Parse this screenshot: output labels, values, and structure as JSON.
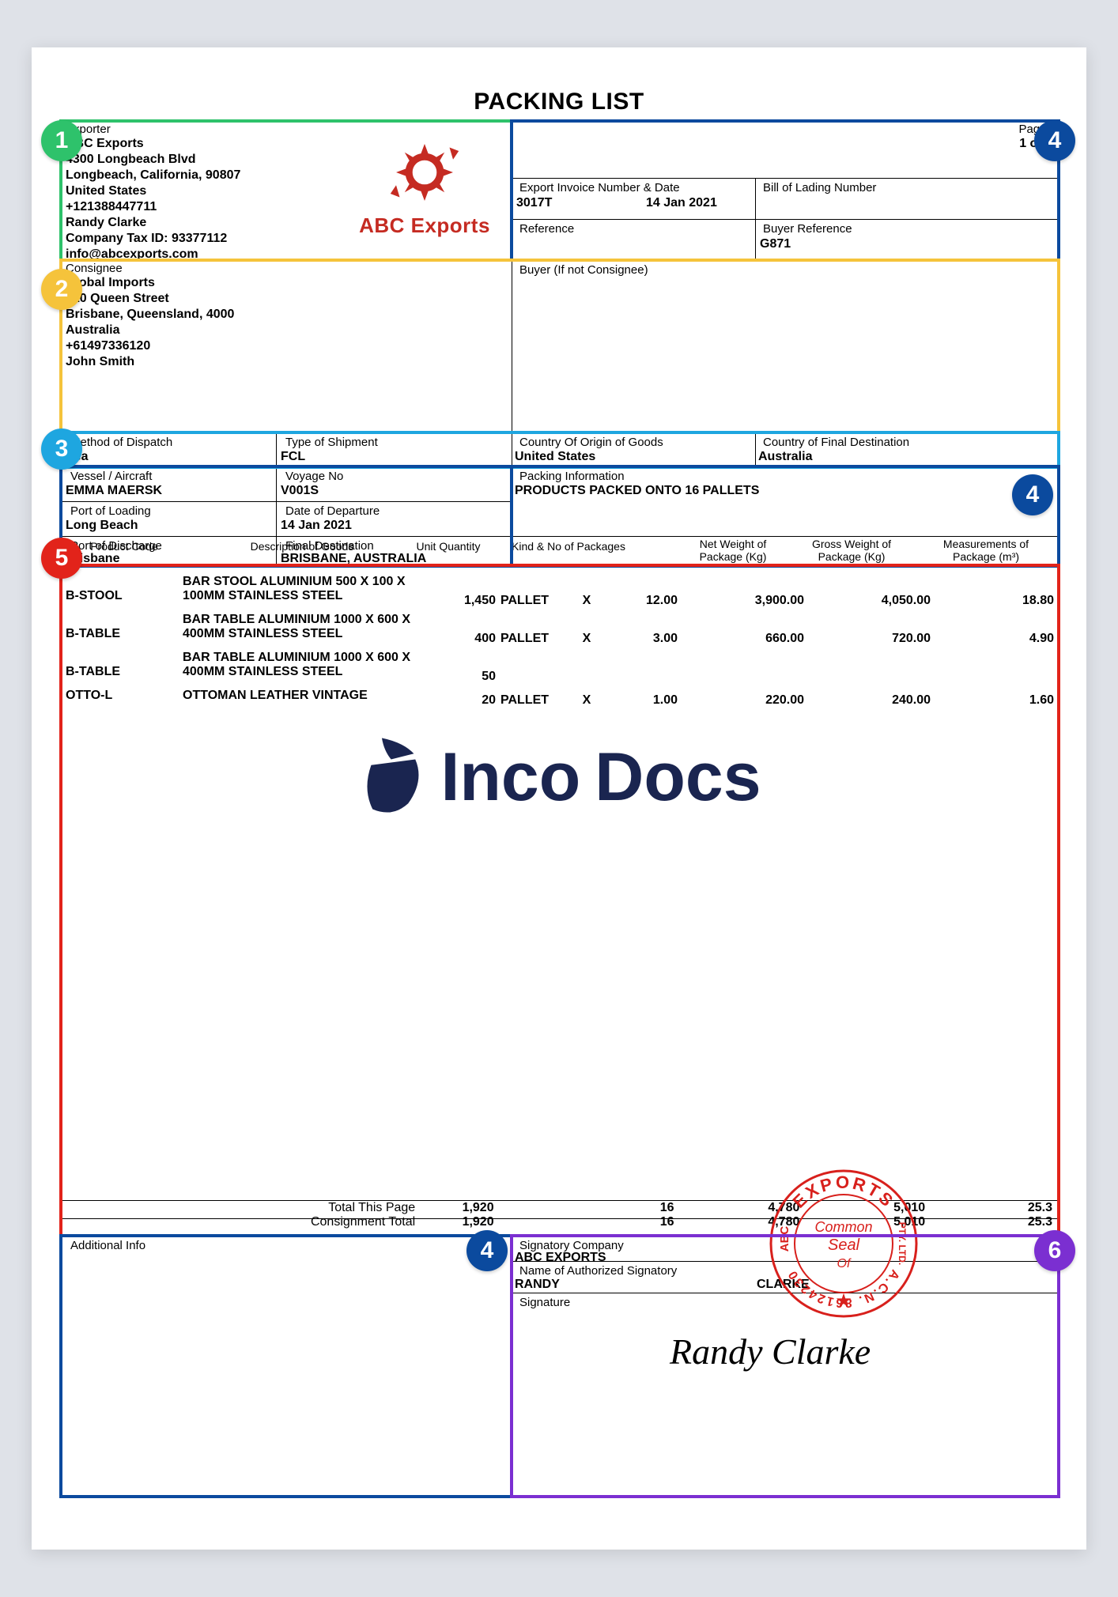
{
  "title": "PACKING LIST",
  "colors": {
    "green": "#2ec26b",
    "blue": "#0b4a9e",
    "yellow": "#f5c33b",
    "cyan": "#1ea6e0",
    "red": "#e2231a",
    "purple": "#7b2fd1",
    "page_bg": "#dfe2e8",
    "text": "#000000",
    "logo_red": "#c52b22",
    "wm_navy": "#1a2550",
    "seal_red": "#d8201c"
  },
  "badges": [
    {
      "n": "1",
      "color": "green"
    },
    {
      "n": "2",
      "color": "yellow"
    },
    {
      "n": "3",
      "color": "cyan"
    },
    {
      "n": "4",
      "color": "blue"
    },
    {
      "n": "5",
      "color": "red"
    },
    {
      "n": "6",
      "color": "purple"
    }
  ],
  "labels": {
    "exporter": "Exporter",
    "pages": "Pages",
    "invoice_no": "Export Invoice Number & Date",
    "bol": "Bill of Lading Number",
    "ref": "Reference",
    "buyer_ref": "Buyer Reference",
    "consignee": "Consignee",
    "buyer": "Buyer (If not Consignee)",
    "dispatch": "Method of Dispatch",
    "ship_type": "Type of Shipment",
    "origin": "Country Of Origin of Goods",
    "final_dest_country": "Country of Final Destination",
    "vessel": "Vessel / Aircraft",
    "voyage": "Voyage No",
    "packing_info": "Packing Information",
    "port_load": "Port of Loading",
    "dep_date": "Date of Departure",
    "port_disch": "Port of Discharge",
    "final_dest": "Final Destination",
    "product_code": "Product Code",
    "desc": "Description of Goods",
    "unit_qty": "Unit Quantity",
    "kind_pkg": "Kind & No of Packages",
    "net_wt": "Net Weight of Package (Kg)",
    "gross_wt": "Gross Weight of Package (Kg)",
    "meas": "Measurements of Package (m³)",
    "total_page": "Total This Page",
    "consign_total": "Consignment Total",
    "addl": "Additional Info",
    "sig_company": "Signatory Company",
    "sig_name": "Name of Authorized Signatory",
    "signature": "Signature"
  },
  "exporter": {
    "name": "ABC Exports",
    "addr1": "4300 Longbeach Blvd",
    "addr2": "Longbeach, California, 90807",
    "country": "United States",
    "phone": "+121388447711",
    "contact": "Randy Clarke",
    "tax": "Company Tax ID: 93377112",
    "email": "info@abcexports.com"
  },
  "consignee": {
    "name": "Global Imports",
    "addr1": "410 Queen Street",
    "addr2": "Brisbane, Queensland, 4000",
    "country": "Australia",
    "phone": "+61497336120",
    "contact": "John Smith"
  },
  "header": {
    "pages": "1 of 1",
    "invoice_no": "3017T",
    "invoice_date": "14 Jan 2021",
    "bol": "",
    "reference": "",
    "buyer_ref": "G871"
  },
  "shipment": {
    "dispatch": "Sea",
    "ship_type": "FCL",
    "origin": "United States",
    "final_dest_country": "Australia",
    "vessel": "EMMA MAERSK",
    "voyage": "V001S",
    "packing_info": "PRODUCTS PACKED ONTO 16 PALLETS",
    "port_load": "Long Beach",
    "dep_date": "14 Jan 2021",
    "port_disch": "Brisbane",
    "final_dest": "BRISBANE, AUSTRALIA"
  },
  "items": [
    {
      "code": "B-STOOL",
      "desc": "BAR STOOL ALUMINIUM 500 X 100 X 100MM STAINLESS STEEL",
      "qty": "1,450",
      "kind": "PALLET",
      "x": "X",
      "pkgs": "12.00",
      "net": "3,900.00",
      "gross": "4,050.00",
      "meas": "18.80"
    },
    {
      "code": "B-TABLE",
      "desc": "BAR TABLE ALUMINIUM 1000 X 600 X 400MM STAINLESS STEEL",
      "qty": "400",
      "kind": "PALLET",
      "x": "X",
      "pkgs": "3.00",
      "net": "660.00",
      "gross": "720.00",
      "meas": "4.90"
    },
    {
      "code": "B-TABLE",
      "desc": "BAR TABLE ALUMINIUM 1000 X 600 X 400MM STAINLESS STEEL",
      "qty": "50",
      "kind": "",
      "x": "",
      "pkgs": "",
      "net": "",
      "gross": "",
      "meas": ""
    },
    {
      "code": "OTTO-L",
      "desc": "OTTOMAN LEATHER VINTAGE",
      "qty": "20",
      "kind": "PALLET",
      "x": "X",
      "pkgs": "1.00",
      "net": "220.00",
      "gross": "240.00",
      "meas": "1.60"
    }
  ],
  "totals": {
    "page": {
      "qty": "1,920",
      "pkgs": "16",
      "net": "4,780",
      "gross": "5,010",
      "meas": "25.3"
    },
    "consign": {
      "qty": "1,920",
      "pkgs": "16",
      "net": "4,780",
      "gross": "5,010",
      "meas": "25.3"
    }
  },
  "signature": {
    "company": "ABC EXPORTS",
    "first": "RANDY",
    "last": "CLARKE",
    "sig": "Randy Clarke"
  },
  "watermark": {
    "text1": "Inco",
    "text2": "Docs"
  },
  "logo": {
    "text": "ABC Exports"
  },
  "seal": {
    "top": "EXPORTS",
    "left": "ABC",
    "right": "PTY. LTD.",
    "center1": "Common",
    "center2": "Seal",
    "center3": "Of",
    "bottom": "A.C.N. 86124230"
  }
}
